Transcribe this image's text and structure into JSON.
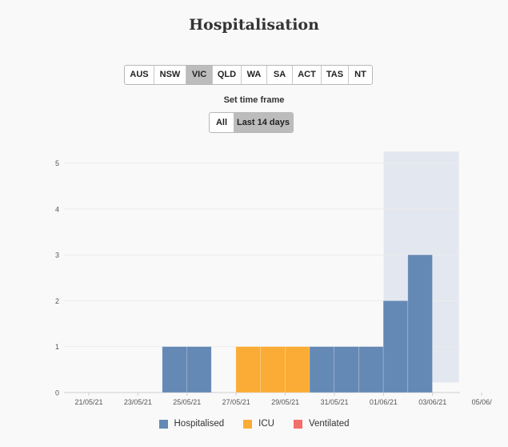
{
  "title": "Hospitalisation",
  "states": [
    "AUS",
    "NSW",
    "VIC",
    "QLD",
    "WA",
    "SA",
    "ACT",
    "TAS",
    "NT"
  ],
  "selected_state": "VIC",
  "timeframe": {
    "label": "Set time frame",
    "options": [
      "All",
      "Last 14 days"
    ],
    "selected": "Last 14 days"
  },
  "colors": {
    "hospitalised": "#6589b5",
    "icu": "#fbac36",
    "ventilated": "#f26f6b",
    "shade": "#e3e7ef"
  },
  "chart_data": {
    "type": "bar",
    "title": "Hospitalisation",
    "xlabel": "",
    "ylabel": "",
    "ylim": [
      0,
      5.25
    ],
    "yticks": [
      "0",
      "1",
      "2",
      "3",
      "4",
      "5"
    ],
    "xticks": [
      "21/05/21",
      "23/05/21",
      "25/05/21",
      "27/05/21",
      "29/05/21",
      "31/05/21",
      "01/06/21",
      "03/06/21",
      "05/06/"
    ],
    "categories": [
      "20/05",
      "21/05",
      "22/05",
      "23/05",
      "24/05",
      "25/05",
      "26/05",
      "27/05",
      "28/05",
      "29/05",
      "30/05",
      "31/05",
      "01/06",
      "02/06",
      "03/06",
      "04/06",
      "05/06"
    ],
    "series": [
      {
        "name": "Hospitalised",
        "values": [
          0,
          0,
          0,
          0,
          1,
          1,
          0,
          0,
          0,
          0,
          1,
          1,
          1,
          2,
          3,
          0,
          0
        ]
      },
      {
        "name": "ICU",
        "values": [
          0,
          0,
          0,
          0,
          0,
          0,
          0,
          1,
          1,
          1,
          0,
          0,
          0,
          0,
          0,
          0,
          0
        ]
      },
      {
        "name": "Ventilated",
        "values": [
          0,
          0,
          0,
          0,
          0,
          0,
          0,
          0,
          0,
          0,
          0,
          0,
          0,
          0,
          0,
          0,
          0
        ]
      }
    ],
    "shaded_range": [
      "02/06",
      "05/06"
    ],
    "legend": [
      "Hospitalised",
      "ICU",
      "Ventilated"
    ],
    "legend_position": "bottom"
  }
}
